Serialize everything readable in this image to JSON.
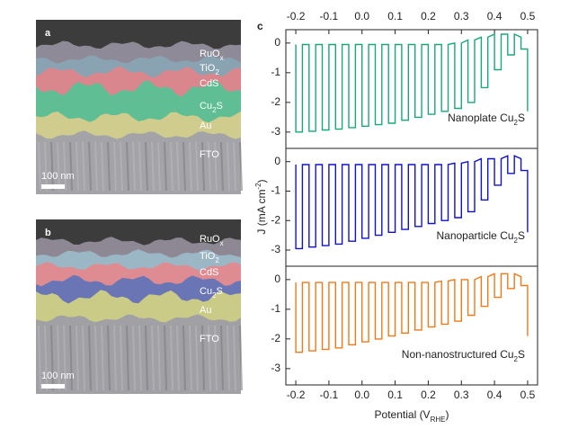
{
  "panel_a": {
    "label": "a",
    "scale_bar": "100 nm",
    "layers": [
      [
        "RuO",
        "x"
      ],
      [
        "TiO",
        "2"
      ],
      [
        "CdS"
      ],
      [
        "Cu",
        "2",
        "S"
      ],
      [
        "Au"
      ],
      [
        "FTO"
      ]
    ]
  },
  "panel_b": {
    "label": "b",
    "scale_bar": "100 nm",
    "layers": [
      [
        "RuO",
        "x"
      ],
      [
        "TiO",
        "2"
      ],
      [
        "CdS"
      ],
      [
        "Cu",
        "2",
        "S"
      ],
      [
        "Au"
      ],
      [
        "FTO"
      ]
    ]
  },
  "panel_c_label": "c",
  "ylabel": [
    "J (mA cm",
    "-2",
    ")"
  ],
  "xlabel": [
    "Potential (V",
    "RHE",
    ")"
  ],
  "chart_data": [
    {
      "type": "line",
      "xlim": [
        -0.23,
        0.53
      ],
      "ylim": [
        -3.55,
        0.45
      ],
      "yticks": [
        0,
        -1,
        -2,
        -3
      ],
      "xticks": [
        -0.2,
        -0.1,
        {
          "value": 0,
          "label": "0.0"
        },
        0.1,
        0.2,
        0.3,
        0.4,
        0.5
      ],
      "xtick_position": "top",
      "annotation": [
        "Nanoplate Cu",
        "2",
        "S"
      ],
      "x": [
        -0.2,
        -0.2,
        -0.18,
        -0.18,
        -0.16,
        -0.16,
        -0.14,
        -0.14,
        -0.12,
        -0.12,
        -0.1,
        -0.1,
        -0.08,
        -0.08,
        -0.06,
        -0.06,
        -0.04,
        -0.04,
        -0.02,
        -0.02,
        0,
        0,
        0.02,
        0.02,
        0.04,
        0.04,
        0.06,
        0.06,
        0.08,
        0.08,
        0.1,
        0.1,
        0.12,
        0.12,
        0.14,
        0.14,
        0.16,
        0.16,
        0.18,
        0.18,
        0.2,
        0.2,
        0.22,
        0.22,
        0.24,
        0.24,
        0.26,
        0.26,
        0.28,
        0.28,
        0.3,
        0.3,
        0.32,
        0.32,
        0.34,
        0.34,
        0.36,
        0.36,
        0.38,
        0.38,
        0.4,
        0.4,
        0.42,
        0.42,
        0.44,
        0.44,
        0.46,
        0.46,
        0.48,
        0.48,
        0.5,
        0.5
      ],
      "series": [
        {
          "color": "#1aa877",
          "values": [
            -0.05,
            -3.0,
            -3.0,
            -0.05,
            -0.05,
            -2.97,
            -2.97,
            -0.05,
            -0.05,
            -2.93,
            -2.93,
            -0.05,
            -0.05,
            -2.9,
            -2.9,
            -0.05,
            -0.05,
            -2.85,
            -2.85,
            -0.05,
            -0.05,
            -2.8,
            -2.8,
            -0.05,
            -0.05,
            -2.75,
            -2.75,
            -0.05,
            -0.05,
            -2.7,
            -2.7,
            -0.05,
            -0.05,
            -2.6,
            -2.6,
            -0.05,
            -0.05,
            -2.5,
            -2.5,
            -0.05,
            -0.05,
            -2.4,
            -2.4,
            -0.05,
            -0.05,
            -2.3,
            -2.3,
            -0.05,
            0,
            -2.2,
            -2.2,
            0,
            0.1,
            -2.0,
            -2.0,
            0.1,
            0.2,
            -1.5,
            -1.5,
            0.2,
            0.3,
            -0.9,
            -0.9,
            0.3,
            0.3,
            -0.4,
            -0.4,
            0.3,
            0.2,
            -0.2,
            -0.2,
            -2.3
          ]
        }
      ]
    },
    {
      "type": "line",
      "xlim": [
        -0.23,
        0.53
      ],
      "ylim": [
        -3.55,
        0.45
      ],
      "yticks": [
        0,
        -1,
        -2,
        -3
      ],
      "annotation": [
        "Nanoparticle Cu",
        "2",
        "S"
      ],
      "x": [
        -0.2,
        -0.2,
        -0.18,
        -0.18,
        -0.16,
        -0.16,
        -0.14,
        -0.14,
        -0.12,
        -0.12,
        -0.1,
        -0.1,
        -0.08,
        -0.08,
        -0.06,
        -0.06,
        -0.04,
        -0.04,
        -0.02,
        -0.02,
        0,
        0,
        0.02,
        0.02,
        0.04,
        0.04,
        0.06,
        0.06,
        0.08,
        0.08,
        0.1,
        0.1,
        0.12,
        0.12,
        0.14,
        0.14,
        0.16,
        0.16,
        0.18,
        0.18,
        0.2,
        0.2,
        0.22,
        0.22,
        0.24,
        0.24,
        0.26,
        0.26,
        0.28,
        0.28,
        0.3,
        0.3,
        0.32,
        0.32,
        0.34,
        0.34,
        0.36,
        0.36,
        0.38,
        0.38,
        0.4,
        0.4,
        0.42,
        0.42,
        0.44,
        0.44,
        0.46,
        0.46,
        0.48,
        0.48,
        0.5,
        0.5
      ],
      "series": [
        {
          "color": "#1212cc",
          "values": [
            -0.1,
            -2.95,
            -2.95,
            -0.1,
            -0.1,
            -2.9,
            -2.9,
            -0.1,
            -0.1,
            -2.85,
            -2.85,
            -0.1,
            -0.1,
            -2.8,
            -2.8,
            -0.1,
            -0.1,
            -2.7,
            -2.7,
            -0.1,
            -0.1,
            -2.6,
            -2.6,
            -0.1,
            -0.1,
            -2.5,
            -2.5,
            -0.1,
            -0.1,
            -2.4,
            -2.4,
            -0.1,
            -0.1,
            -2.3,
            -2.3,
            -0.1,
            -0.1,
            -2.2,
            -2.2,
            -0.1,
            -0.1,
            -2.1,
            -2.1,
            -0.1,
            -0.1,
            -2.0,
            -2.0,
            -0.1,
            -0.05,
            -1.9,
            -1.9,
            -0.05,
            0,
            -1.7,
            -1.7,
            0,
            0.1,
            -1.3,
            -1.3,
            0.1,
            0.1,
            -0.8,
            -0.8,
            0.1,
            0.2,
            -0.4,
            -0.4,
            0.2,
            0.1,
            -0.3,
            -0.3,
            -2.4
          ]
        }
      ]
    },
    {
      "type": "line",
      "xlim": [
        -0.23,
        0.53
      ],
      "ylim": [
        -3.55,
        0.45
      ],
      "yticks": [
        0,
        -1,
        -2,
        -3
      ],
      "xticks": [
        -0.2,
        -0.1,
        {
          "value": 0,
          "label": "0.0"
        },
        0.1,
        0.2,
        0.3,
        0.4,
        0.5
      ],
      "xtick_position": "bottom",
      "annotation": [
        "Non-nanostructured Cu",
        "2",
        "S"
      ],
      "x": [
        -0.2,
        -0.2,
        -0.18,
        -0.18,
        -0.16,
        -0.16,
        -0.14,
        -0.14,
        -0.12,
        -0.12,
        -0.1,
        -0.1,
        -0.08,
        -0.08,
        -0.06,
        -0.06,
        -0.04,
        -0.04,
        -0.02,
        -0.02,
        0,
        0,
        0.02,
        0.02,
        0.04,
        0.04,
        0.06,
        0.06,
        0.08,
        0.08,
        0.1,
        0.1,
        0.12,
        0.12,
        0.14,
        0.14,
        0.16,
        0.16,
        0.18,
        0.18,
        0.2,
        0.2,
        0.22,
        0.22,
        0.24,
        0.24,
        0.26,
        0.26,
        0.28,
        0.28,
        0.3,
        0.3,
        0.32,
        0.32,
        0.34,
        0.34,
        0.36,
        0.36,
        0.38,
        0.38,
        0.4,
        0.4,
        0.42,
        0.42,
        0.44,
        0.44,
        0.46,
        0.46,
        0.48,
        0.48,
        0.5,
        0.5
      ],
      "series": [
        {
          "color": "#f07a1a",
          "values": [
            -0.1,
            -2.45,
            -2.45,
            -0.1,
            -0.1,
            -2.4,
            -2.4,
            -0.1,
            -0.1,
            -2.35,
            -2.35,
            -0.1,
            -0.1,
            -2.3,
            -2.3,
            -0.1,
            -0.1,
            -2.2,
            -2.2,
            -0.1,
            -0.1,
            -2.1,
            -2.1,
            -0.1,
            -0.1,
            -2.0,
            -2.0,
            -0.1,
            -0.1,
            -1.9,
            -1.9,
            -0.1,
            -0.1,
            -1.8,
            -1.8,
            -0.1,
            -0.1,
            -1.7,
            -1.7,
            -0.1,
            -0.1,
            -1.6,
            -1.6,
            -0.1,
            -0.05,
            -1.5,
            -1.5,
            -0.05,
            0,
            -1.4,
            -1.4,
            0,
            0,
            -1.2,
            -1.2,
            0,
            0.1,
            -0.9,
            -0.9,
            0.1,
            0.2,
            -0.6,
            -0.6,
            0.2,
            0.2,
            -0.3,
            -0.3,
            0.2,
            0.1,
            -0.2,
            -0.2,
            -1.9
          ]
        }
      ]
    }
  ]
}
